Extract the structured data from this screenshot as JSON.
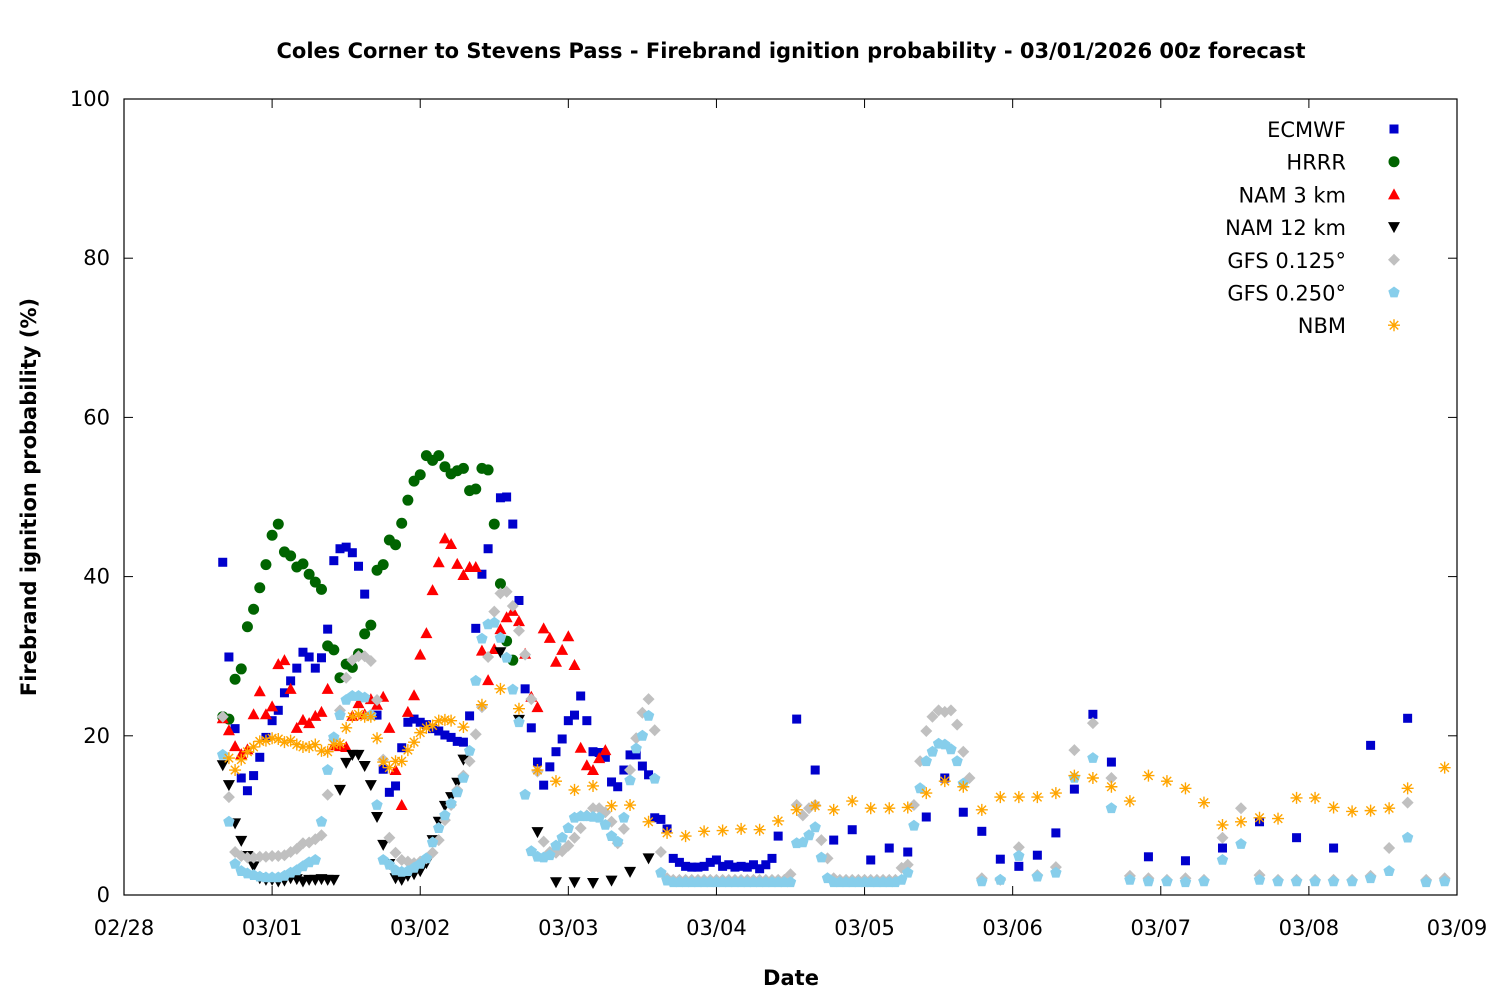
{
  "chart_data": {
    "type": "scatter",
    "title": "Coles Corner to Stevens Pass - Firebrand ignition probability - 03/01/2026 00z forecast",
    "xlabel": "Date",
    "ylabel": "Firebrand ignition probability (%)",
    "x_unit": "hours since 02/28 00:00",
    "xlim": [
      0,
      216
    ],
    "ylim": [
      0,
      100
    ],
    "yticks": [
      "0",
      "20",
      "40",
      "60",
      "80",
      "100"
    ],
    "xticks": [
      "02/28",
      "03/01",
      "03/02",
      "03/03",
      "03/04",
      "03/05",
      "03/06",
      "03/07",
      "03/08",
      "03/09"
    ],
    "legend_position": "top-right",
    "series": [
      {
        "name": "ECMWF",
        "marker": "square",
        "color": "#0000cc",
        "segments": [
          {
            "start": 16,
            "step": 1,
            "values": [
              41.8,
              29.9,
              20.9,
              14.7,
              13.1,
              15,
              17.3,
              19.8,
              21.9,
              23.2,
              25.4,
              26.9,
              28.5,
              30.5,
              29.9,
              28.5,
              29.8,
              33.4,
              42,
              43.5,
              43.7,
              43,
              41.3,
              37.8,
              null,
              22.6,
              15.8,
              12.9,
              13.7,
              18.5,
              21.7,
              22.1,
              21.7,
              21.4,
              20.9,
              20.6,
              20.1,
              19.8,
              19.3,
              19.2,
              22.5,
              33.5,
              40.3,
              43.5,
              null,
              49.9,
              50,
              46.6,
              37,
              25.9,
              21,
              16.7,
              13.8,
              16.1,
              18,
              19.6,
              21.9,
              22.6,
              25,
              21.9,
              18,
              17.9,
              17.3,
              14.2,
              13.6,
              15.7,
              17.6,
              17.6,
              16.2,
              15.1,
              9.7,
              9.5,
              8.3,
              4.6,
              4.1,
              3.6,
              3.5,
              3.5,
              3.6,
              4.1,
              4.4,
              3.6,
              3.8,
              3.5,
              3.6,
              3.5,
              3.8,
              3.3,
              3.8,
              4.6,
              7.4
            ]
          },
          {
            "start": 109,
            "step": 3,
            "values": [
              22.1,
              15.7,
              6.9,
              8.2,
              4.4,
              5.9,
              5.4,
              9.8,
              14.7,
              10.4,
              8,
              4.5,
              3.6,
              5,
              7.8,
              13.3,
              22.7,
              16.7,
              null,
              4.8,
              null,
              4.3,
              null,
              5.9,
              null,
              9.2,
              null,
              7.2,
              null,
              5.9,
              null,
              18.8,
              null,
              22.2
            ]
          }
        ]
      },
      {
        "name": "HRRR",
        "marker": "circle",
        "color": "#006400",
        "segments": [
          {
            "start": 16,
            "step": 1,
            "values": [
              22.4,
              22.1,
              27.1,
              28.4,
              33.7,
              35.9,
              38.6,
              41.5,
              45.2,
              46.6,
              43.1,
              42.6,
              41.2,
              41.6,
              40.3,
              39.3,
              38.4,
              31.3,
              30.8,
              27.3,
              29,
              28.6,
              30.3,
              32.8,
              33.9,
              40.8,
              41.5,
              44.6,
              44,
              46.7,
              49.6,
              52,
              52.8,
              55.2,
              54.6,
              55.2,
              53.8,
              52.9,
              53.3,
              53.6,
              50.8,
              51,
              53.6,
              53.4,
              46.6,
              39.1,
              31.9,
              29.5
            ]
          }
        ]
      },
      {
        "name": "NAM 3 km",
        "marker": "triangle-up",
        "color": "#ff0000",
        "segments": [
          {
            "start": 16,
            "step": 1,
            "values": [
              22.2,
              20.7,
              18.7,
              17.7,
              18.3,
              22.7,
              25.6,
              22.7,
              23.7,
              29,
              29.5,
              25.9,
              21,
              22,
              21.6,
              22.5,
              23,
              25.9,
              18.8,
              18.7,
              18.6,
              22.5,
              24.1,
              22.7,
              24.6,
              23.9,
              24.9,
              21,
              15.7,
              11.3,
              23,
              25.1,
              30.2,
              32.9,
              38.3,
              41.8,
              44.8,
              44.1,
              41.6,
              40.2,
              41.2,
              41.2,
              30.7,
              27,
              30.9,
              33.4,
              34.9,
              35.7,
              34.4,
              30.3,
              24.9,
              23.6,
              33.5,
              32.3,
              29.3,
              30.8,
              32.5,
              28.9,
              18.5,
              16.3,
              15.7,
              17.2,
              18.2
            ]
          }
        ]
      },
      {
        "name": "NAM 12 km",
        "marker": "triangle-down",
        "color": "#000000",
        "segments": [
          {
            "start": 16,
            "step": 1,
            "values": [
              16.3,
              13.8,
              9,
              6.8,
              4.9,
              3.6,
              2.1,
              1.9,
              1.9,
              1.7,
              1.8,
              2.1,
              2,
              1.7,
              1.9,
              1.9,
              2,
              1.9,
              1.9,
              13.2,
              16.6,
              17.6,
              17.6,
              16.2,
              13.8,
              9.8,
              6.3,
              3.9,
              2.1,
              1.9,
              2.4,
              2.6,
              3,
              4,
              6.9,
              9.2,
              11.2,
              12.3,
              14.1,
              17
            ]
          },
          {
            "start": 61,
            "step": 3,
            "values": [
              30.5,
              22,
              7.9,
              1.6,
              1.6,
              1.5,
              1.8,
              2.9,
              4.6
            ]
          }
        ]
      },
      {
        "name": "GFS 0.125°",
        "marker": "diamond",
        "color": "#c0c0c0",
        "segments": [
          {
            "start": 16,
            "step": 1,
            "values": [
              22.4,
              12.3,
              5.4,
              4.9,
              4.7,
              4.7,
              4.8,
              4.8,
              4.9,
              4.9,
              5,
              5.4,
              5.8,
              6.5,
              6.6,
              7,
              7.5,
              12.6,
              19.5,
              23.2,
              27.3,
              29.5,
              30,
              30,
              29.4,
              24.5,
              17,
              7.2,
              5.3,
              4.4,
              4.2,
              4,
              4.2,
              4.6,
              5.3,
              6.9,
              9.4,
              11.3,
              13.2,
              15,
              16.8,
              20.2,
              23.6,
              29.9,
              35.6,
              37.9,
              38.1,
              36.3,
              33.2,
              30.2,
              24.6,
              15.5,
              6.7,
              5.4,
              5.3,
              5.5,
              6.2,
              7.2,
              8.4,
              10,
              10.9,
              10.9,
              10.4,
              9.2,
              6.5,
              8.3,
              15.7,
              19.7,
              22.9,
              24.6,
              20.7,
              5.4,
              2.1
            ]
          },
          {
            "start": 89,
            "step": 1,
            "values": [
              1.9,
              1.9,
              1.9,
              1.9,
              1.9,
              1.9,
              1.9,
              1.9,
              1.9,
              1.9,
              1.9,
              1.9,
              1.9,
              1.9,
              1.9,
              1.9,
              1.9,
              1.9,
              1.9,
              2.6,
              11.3,
              10,
              10.9,
              11.3,
              6.9,
              4.6,
              2.1,
              1.9,
              1.9,
              1.9,
              1.9,
              1.9,
              1.9,
              1.9,
              1.9,
              1.9,
              1.9,
              3.4,
              3.8,
              11.3,
              16.8,
              20.6,
              22.4,
              23.2,
              23,
              23.2,
              21.4,
              18,
              14.7
            ]
          },
          {
            "start": 139,
            "step": 3,
            "values": [
              2.1,
              1.9,
              6,
              2.5,
              3.5,
              18.2,
              21.6,
              14.7,
              2.4,
              2.1,
              1.9,
              2.1,
              1.9,
              7.2,
              10.9,
              2.5,
              1.9,
              1.9,
              1.9,
              1.9,
              1.9,
              2.4,
              5.9,
              11.6,
              1.9,
              2.1
            ]
          }
        ]
      },
      {
        "name": "GFS 0.250°",
        "marker": "pentagon",
        "color": "#87ceeb",
        "segments": [
          {
            "start": 16,
            "step": 1,
            "values": [
              17.6,
              9.2,
              3.9,
              3,
              2.7,
              2.5,
              2.3,
              2.2,
              2.2,
              2.2,
              2.4,
              2.8,
              3.1,
              3.6,
              4.1,
              4.4,
              9.2,
              15.7,
              19.8,
              22.6,
              24.5,
              25,
              25,
              24.8,
              22.6,
              11.3,
              4.4,
              3.8,
              3.1,
              2.9,
              3,
              3.4,
              3.9,
              4.6,
              6.6,
              8.4,
              10,
              11.5,
              12.9,
              14.7,
              18.1,
              26.9,
              32.2,
              34,
              34.2,
              32.3,
              29.8,
              25.8,
              21.7,
              12.6,
              5.5,
              4.8,
              4.7,
              5,
              6.2,
              7.2,
              8.4,
              9.7,
              9.9,
              9.9,
              9.8,
              9.7,
              8.8,
              7.4,
              6.7,
              9.7,
              14.4,
              18.4,
              20,
              22.5,
              14.6,
              2.8,
              1.8
            ]
          },
          {
            "start": 89,
            "step": 1,
            "values": [
              1.6,
              1.6,
              1.6,
              1.6,
              1.6,
              1.6,
              1.6,
              1.6,
              1.6,
              1.6,
              1.6,
              1.6,
              1.6,
              1.6,
              1.6,
              1.6,
              1.6,
              1.6,
              1.6,
              1.6,
              6.5,
              6.6,
              7.5,
              8.5,
              4.7,
              2.1,
              1.6,
              1.6,
              1.6,
              1.6,
              1.6,
              1.6,
              1.6,
              1.6,
              1.6,
              1.6,
              1.6,
              1.9,
              2.8,
              8.7,
              13.4,
              16.8,
              18,
              19,
              18.9,
              18.3,
              16.8,
              14
            ]
          },
          {
            "start": 139,
            "step": 3,
            "values": [
              1.7,
              1.9,
              4.9,
              2.3,
              2.8,
              14.7,
              17.2,
              10.9,
              1.9,
              1.7,
              1.7,
              1.6,
              1.7,
              4.4,
              6.4,
              1.9,
              1.7,
              1.7,
              1.7,
              1.7,
              1.7,
              2.1,
              3,
              7.2,
              1.6,
              1.7
            ]
          }
        ]
      },
      {
        "name": "NBM",
        "marker": "asterisk",
        "color": "#ffa500",
        "segments": [
          {
            "start": 17,
            "step": 1,
            "values": [
              17.2,
              15.7,
              17,
              18,
              18.6,
              19.3,
              19.4,
              19.7,
              19.6,
              19.2,
              19.4,
              18.9,
              18.6,
              18.6,
              18.9,
              18.1,
              18,
              18.9,
              19,
              21,
              22.4,
              22.7,
              22.4,
              22.4,
              19.7,
              16.7,
              16,
              16.8,
              16.8,
              18.2,
              19.2,
              20.4,
              21,
              21.3,
              21.9,
              22,
              21.9
            ]
          },
          {
            "start": 55,
            "step": 3,
            "values": [
              21.1,
              23.9,
              25.9,
              23.4,
              15.7,
              14.3,
              13.2,
              13.7,
              11.2,
              11.3,
              9.2,
              7.8,
              7.4,
              8,
              8.1,
              8.3,
              8.2,
              9.3,
              10.7,
              11.2,
              10.7,
              11.8,
              10.9,
              10.9,
              11,
              12.8,
              14.3,
              13.6,
              10.7,
              12.3,
              12.3,
              12.3,
              12.8,
              15,
              14.7,
              13.6,
              11.8,
              15,
              14.3,
              13.4,
              11.6,
              8.8,
              9.2,
              9.7,
              9.6,
              12.2,
              12.2,
              11,
              10.5,
              10.6,
              10.9,
              13.4,
              null,
              16
            ]
          }
        ]
      }
    ]
  }
}
